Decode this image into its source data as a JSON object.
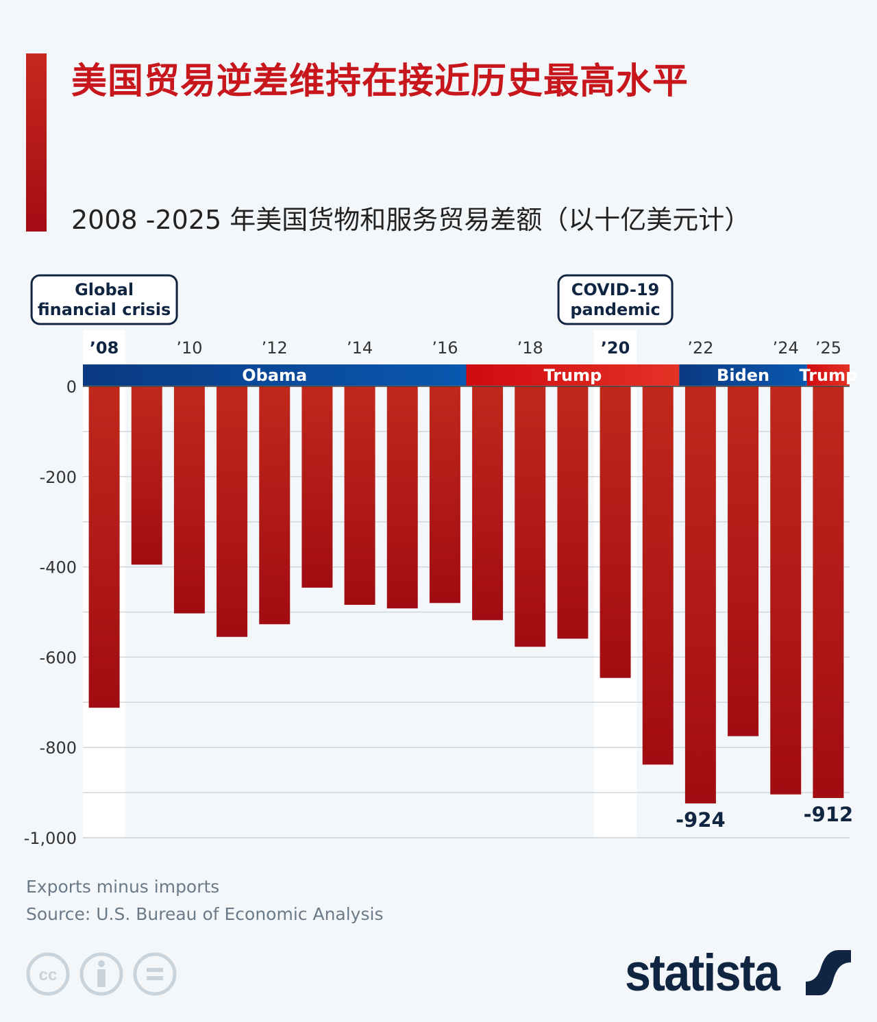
{
  "title": "美国贸易逆差维持在接近历史最高水平",
  "subtitle": "2008 -2025 年美国货物和服务贸易差额（以十亿美元计）",
  "footnote": "Exports minus imports",
  "source": "Source: U.S. Bureau of Economic Analysis",
  "brand": "statista",
  "license_icons": [
    "cc-icon",
    "attribution-icon",
    "no-derivatives-icon"
  ],
  "colors": {
    "bar": "#b3181a",
    "title": "#c8161d",
    "democrat": "#0a3d8c",
    "republican": "#d71920",
    "highlight": "#ffffff",
    "brand": "#0f2542"
  },
  "chart_data": {
    "type": "bar",
    "categories": [
      "2008",
      "2009",
      "2010",
      "2011",
      "2012",
      "2013",
      "2014",
      "2015",
      "2016",
      "2017",
      "2018",
      "2019",
      "2020",
      "2021",
      "2022",
      "2023",
      "2024",
      "2025"
    ],
    "tick_labels": {
      "2008": "’08",
      "2010": "’10",
      "2012": "’12",
      "2014": "’14",
      "2016": "’16",
      "2018": "’18",
      "2020": "’20",
      "2022": "’22",
      "2024": "’24",
      "2025": "’25"
    },
    "values": [
      -712,
      -395,
      -503,
      -555,
      -527,
      -446,
      -484,
      -492,
      -480,
      -518,
      -577,
      -559,
      -646,
      -838,
      -924,
      -775,
      -904,
      -912
    ],
    "data_labels": {
      "2022": "-924",
      "2025": "-912"
    },
    "ylim": [
      -1000,
      0
    ],
    "yticks": [
      0,
      -200,
      -400,
      -600,
      -800,
      -1000
    ],
    "ytick_labels": [
      "0",
      "-200",
      "-400",
      "-600",
      "-800",
      "-1,000"
    ],
    "grid": true,
    "highlights": [
      {
        "year": "2008",
        "label_line1": "Global",
        "label_line2": "financial crisis"
      },
      {
        "year": "2020",
        "label_line1": "COVID-19",
        "label_line2": "pandemic"
      }
    ],
    "presidents": [
      {
        "name": "Obama",
        "from": "2008",
        "to": "2016",
        "party": "democrat"
      },
      {
        "name": "Trump",
        "from": "2017",
        "to": "2021",
        "party": "republican"
      },
      {
        "name": "Biden",
        "from": "2022",
        "to": "2024",
        "party": "democrat"
      },
      {
        "name": "Trump",
        "from": "2025",
        "to": "2025",
        "party": "republican"
      }
    ]
  }
}
